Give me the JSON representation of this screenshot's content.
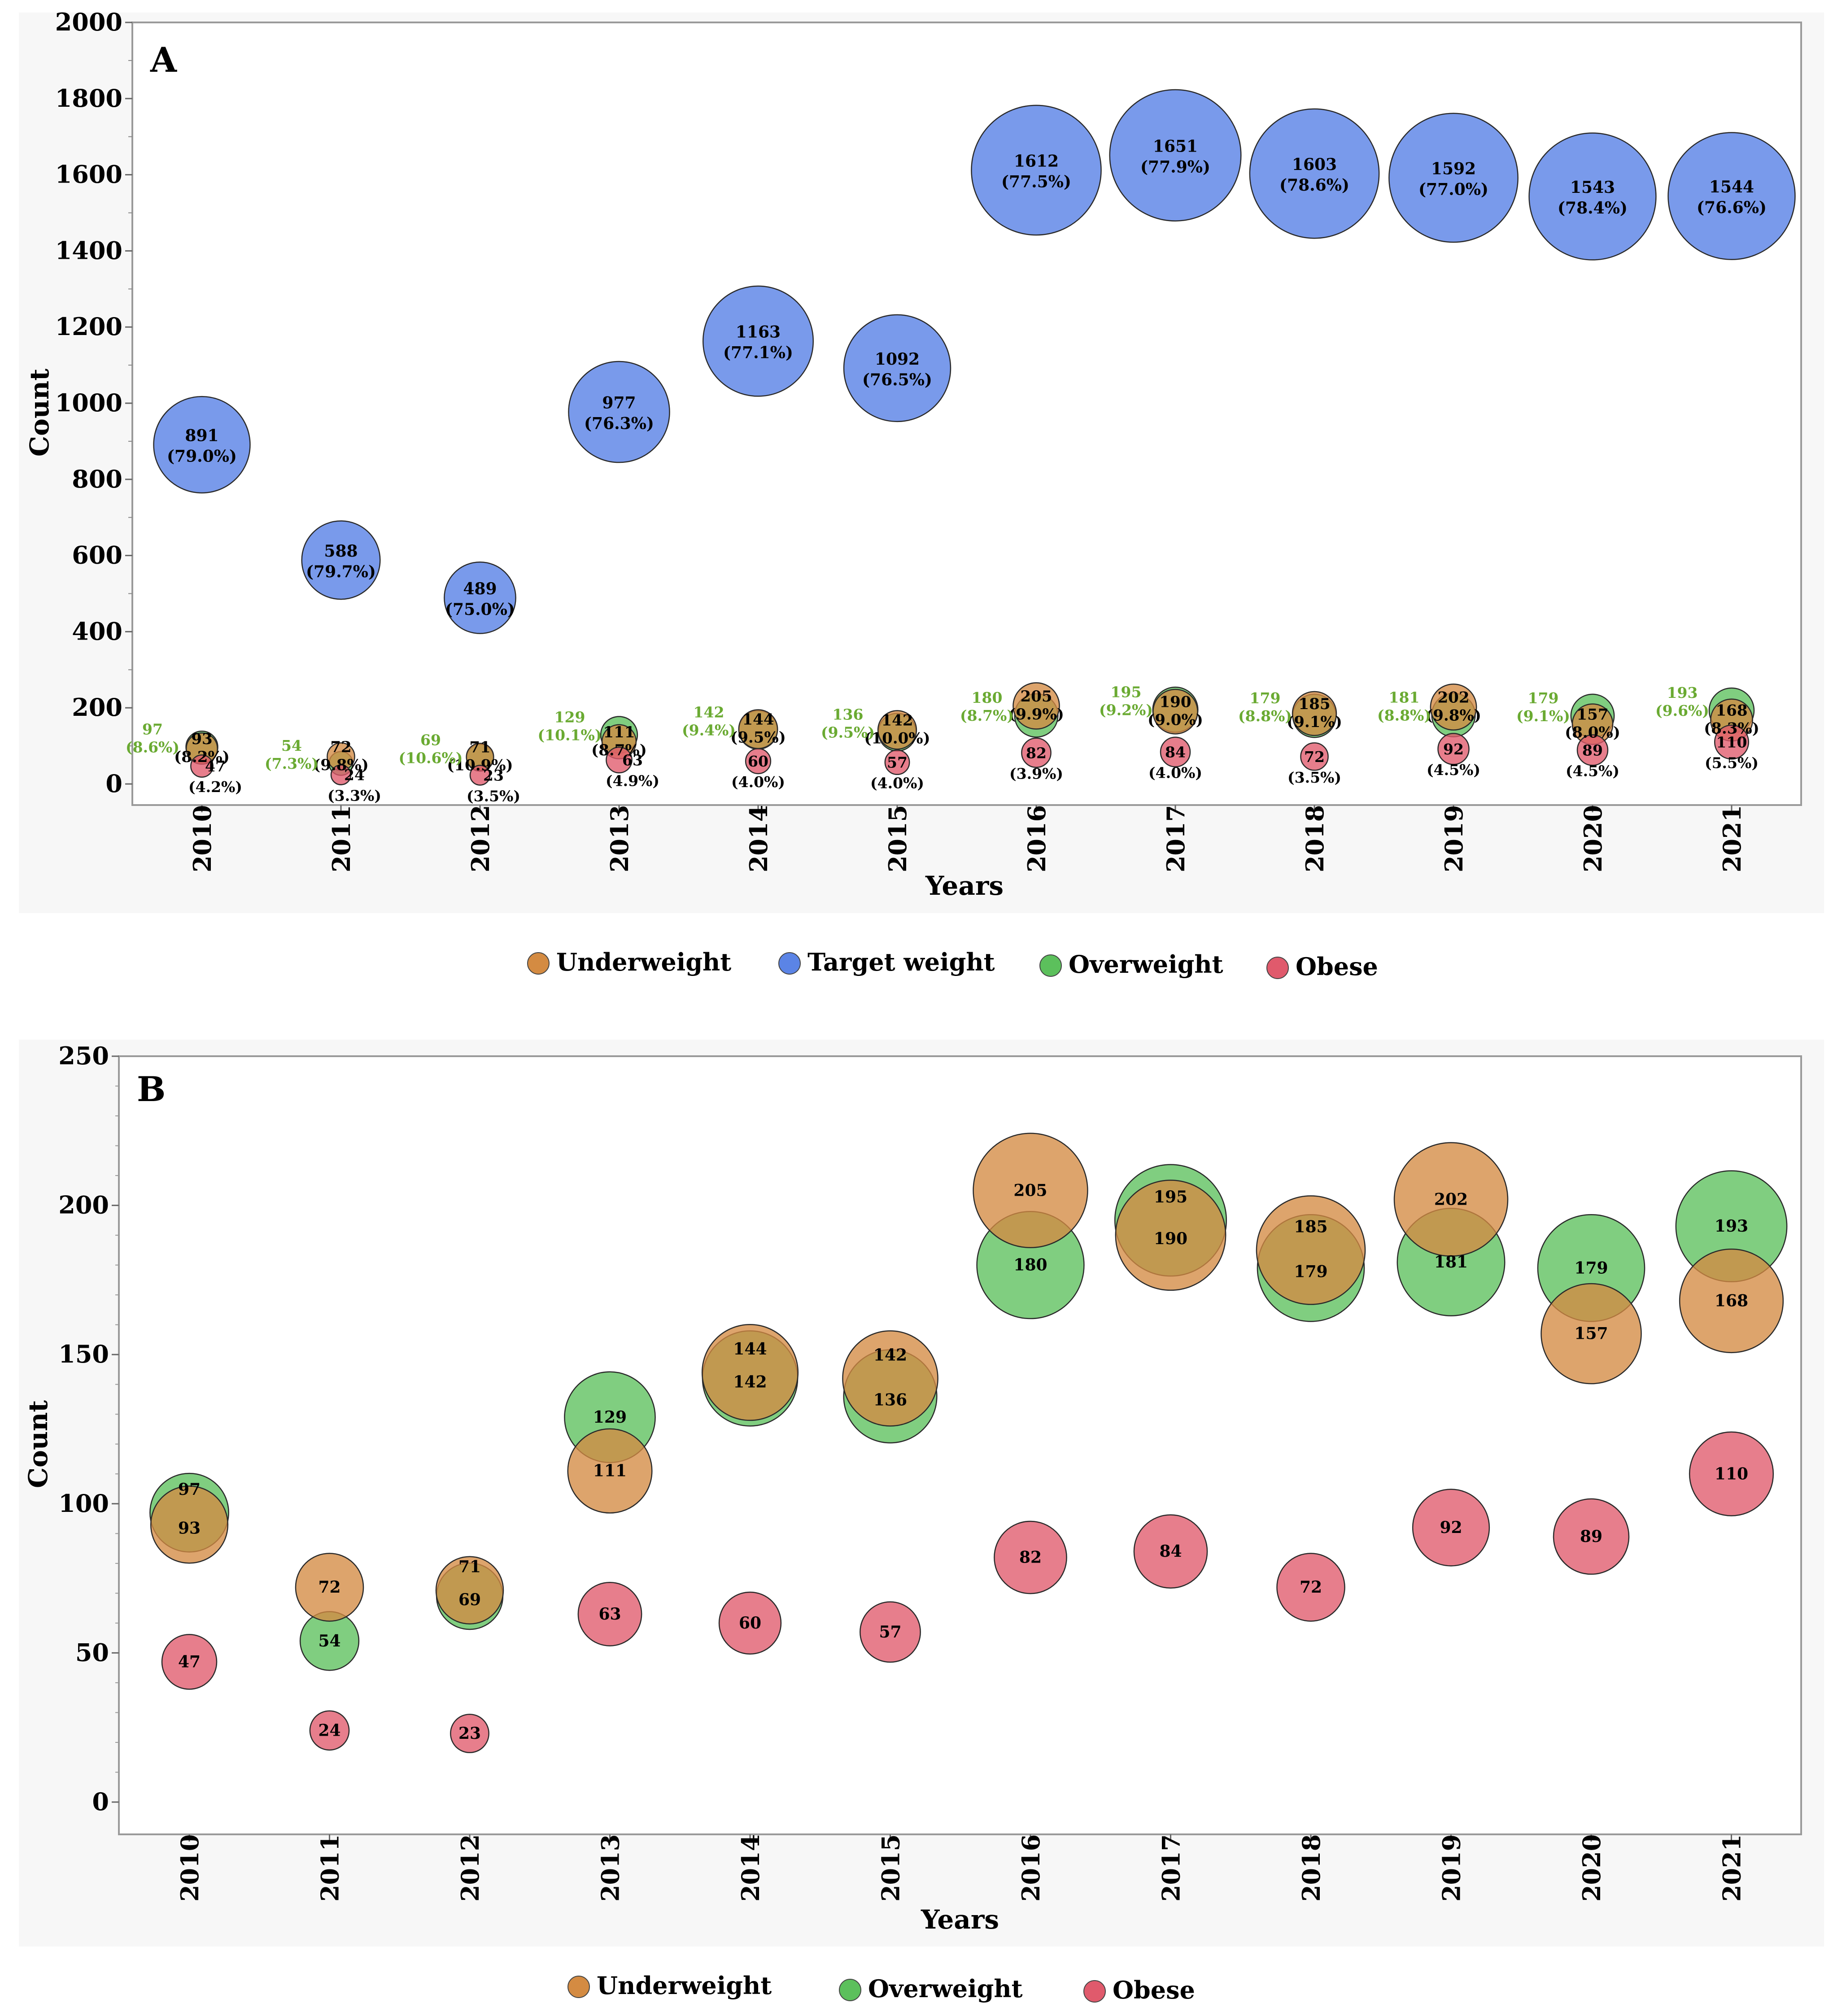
{
  "colors": {
    "underweight": "#d48b42",
    "target": "#5b84e6",
    "overweight": "#5cc05c",
    "obese": "#e05a6c",
    "pct_label_green": "#6aaa32",
    "frame_bg": "#f7f7f7"
  },
  "chart_data": [
    {
      "type": "scatter",
      "panel": "A",
      "title": "A",
      "xlabel": "Years",
      "ylabel": "Count",
      "ylim": [
        0,
        2000
      ],
      "yticks": [
        "0",
        "200",
        "400",
        "600",
        "800",
        "1000",
        "1200",
        "1400",
        "1600",
        "1800",
        "2000"
      ],
      "categories": [
        "2010",
        "2011",
        "2012",
        "2013",
        "2014",
        "2015",
        "2016",
        "2017",
        "2018",
        "2019",
        "2020",
        "2021"
      ],
      "legend_position": "bottom",
      "legend": [
        "Underweight",
        "Target weight",
        "Overweight",
        "Obese"
      ],
      "series": [
        {
          "key": "target",
          "name": "Target weight",
          "values": [
            891,
            588,
            489,
            977,
            1163,
            1092,
            1612,
            1651,
            1603,
            1592,
            1543,
            1544
          ],
          "labels": [
            "891",
            "588",
            "489",
            "977",
            "1163",
            "1092",
            "1612",
            "1651",
            "1603",
            "1592",
            "1543",
            "1544"
          ],
          "pcts": [
            "(79.0%)",
            "(79.7%)",
            "(75.0%)",
            "(76.3%)",
            "(77.1%)",
            "(76.5%)",
            "(77.5%)",
            "(77.9%)",
            "(78.6%)",
            "(77.0%)",
            "(78.4%)",
            "(76.6%)"
          ]
        },
        {
          "key": "overweight",
          "name": "Overweight",
          "values": [
            97,
            54,
            69,
            129,
            142,
            136,
            180,
            195,
            179,
            181,
            179,
            193
          ],
          "labels": [
            "97",
            "54",
            "69",
            "129",
            "142",
            "136",
            "180",
            "195",
            "179",
            "181",
            "179",
            "193"
          ],
          "pcts": [
            "(8.6%)",
            "(7.3%)",
            "(10.6%)",
            "(10.1%)",
            "(9.4%)",
            "(9.5%)",
            "(8.7%)",
            "(9.2%)",
            "(8.8%)",
            "(8.8%)",
            "(9.1%)",
            "(9.6%)"
          ]
        },
        {
          "key": "underweight",
          "name": "Underweight",
          "values": [
            93,
            72,
            71,
            111,
            144,
            142,
            205,
            190,
            185,
            202,
            157,
            168
          ],
          "labels": [
            "93",
            "72",
            "71",
            "111",
            "144",
            "142",
            "205",
            "190",
            "185",
            "202",
            "157",
            "168"
          ],
          "pcts": [
            "(8.2%)",
            "(9.8%)",
            "(10.9%)",
            "(8.7%)",
            "(9.5%)",
            "(10.0%)",
            "(9.9%)",
            "(9.0%)",
            "(9.1%)",
            "(9.8%)",
            "(8.0%)",
            "(8.3%)"
          ]
        },
        {
          "key": "obese",
          "name": "Obese",
          "values": [
            47,
            24,
            23,
            63,
            60,
            57,
            82,
            84,
            72,
            92,
            89,
            110
          ],
          "labels": [
            "47",
            "24",
            "23",
            "63",
            "60",
            "57",
            "82",
            "84",
            "72",
            "92",
            "89",
            "110"
          ],
          "pcts": [
            "(4.2%)",
            "(3.3%)",
            "(3.5%)",
            "(4.9%)",
            "(4.0%)",
            "(4.0%)",
            "(3.9%)",
            "(4.0%)",
            "(3.5%)",
            "(4.5%)",
            "(4.5%)",
            "(5.5%)"
          ]
        }
      ]
    },
    {
      "type": "scatter",
      "panel": "B",
      "title": "B",
      "xlabel": "Years",
      "ylabel": "Count",
      "ylim": [
        0,
        250
      ],
      "yticks": [
        "0",
        "50",
        "100",
        "150",
        "200",
        "250"
      ],
      "categories": [
        "2010",
        "2011",
        "2012",
        "2013",
        "2014",
        "2015",
        "2016",
        "2017",
        "2018",
        "2019",
        "2020",
        "2021"
      ],
      "legend_position": "bottom",
      "legend": [
        "Underweight",
        "Overweight",
        "Obese"
      ],
      "series": [
        {
          "key": "overweight",
          "name": "Overweight",
          "values": [
            97,
            54,
            69,
            129,
            142,
            136,
            180,
            195,
            179,
            181,
            179,
            193
          ],
          "labels": [
            "97",
            "54",
            "69",
            "129",
            "142",
            "136",
            "180",
            "195",
            "179",
            "181",
            "179",
            "193"
          ]
        },
        {
          "key": "underweight",
          "name": "Underweight",
          "values": [
            93,
            72,
            71,
            111,
            144,
            142,
            205,
            190,
            185,
            202,
            157,
            168
          ],
          "labels": [
            "93",
            "72",
            "71",
            "111",
            "144",
            "142",
            "205",
            "190",
            "185",
            "202",
            "157",
            "168"
          ]
        },
        {
          "key": "obese",
          "name": "Obese",
          "values": [
            47,
            24,
            23,
            63,
            60,
            57,
            82,
            84,
            72,
            92,
            89,
            110
          ],
          "labels": [
            "47",
            "24",
            "23",
            "63",
            "60",
            "57",
            "82",
            "84",
            "72",
            "92",
            "89",
            "110"
          ]
        }
      ]
    }
  ]
}
